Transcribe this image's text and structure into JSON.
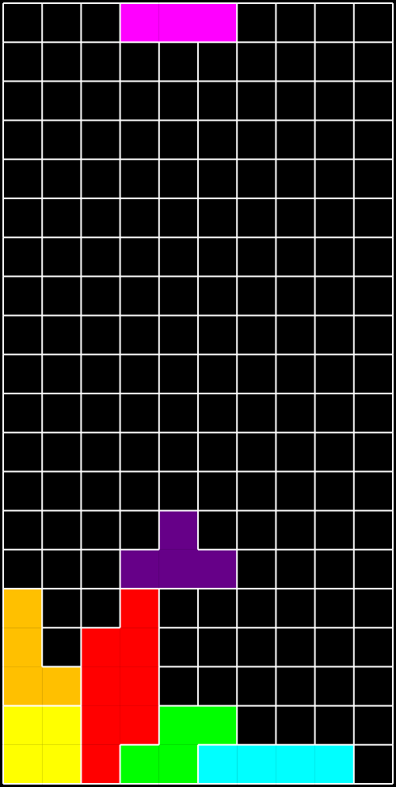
{
  "board": {
    "columns": 10,
    "rows": 20,
    "empty_color": "#000000",
    "grid_color": "#ffffff",
    "pieces": [
      {
        "name": "falling-piece",
        "shape": "I",
        "color": "#ff00ff",
        "cells": [
          [
            3,
            0
          ],
          [
            4,
            0
          ],
          [
            5,
            0
          ]
        ]
      },
      {
        "name": "t-piece",
        "shape": "T",
        "color": "#660088",
        "cells": [
          [
            4,
            13
          ],
          [
            3,
            14
          ],
          [
            4,
            14
          ],
          [
            5,
            14
          ]
        ]
      },
      {
        "name": "l-piece",
        "shape": "L",
        "color": "#ffc000",
        "cells": [
          [
            0,
            15
          ],
          [
            0,
            16
          ],
          [
            0,
            17
          ],
          [
            1,
            17
          ]
        ]
      },
      {
        "name": "s-piece",
        "shape": "S",
        "color": "#ff0000",
        "cells": [
          [
            3,
            15
          ],
          [
            2,
            16
          ],
          [
            3,
            16
          ],
          [
            2,
            17
          ],
          [
            3,
            17
          ],
          [
            2,
            18
          ],
          [
            3,
            18
          ],
          [
            2,
            19
          ]
        ]
      },
      {
        "name": "o-piece",
        "shape": "O",
        "color": "#ffff00",
        "cells": [
          [
            0,
            18
          ],
          [
            1,
            18
          ],
          [
            0,
            19
          ],
          [
            1,
            19
          ]
        ]
      },
      {
        "name": "z-piece",
        "shape": "Z",
        "color": "#00ff00",
        "cells": [
          [
            4,
            18
          ],
          [
            5,
            18
          ],
          [
            3,
            19
          ],
          [
            4,
            19
          ]
        ]
      },
      {
        "name": "i-piece",
        "shape": "I",
        "color": "#00ffff",
        "cells": [
          [
            5,
            19
          ],
          [
            6,
            19
          ],
          [
            7,
            19
          ],
          [
            8,
            19
          ]
        ]
      }
    ]
  }
}
